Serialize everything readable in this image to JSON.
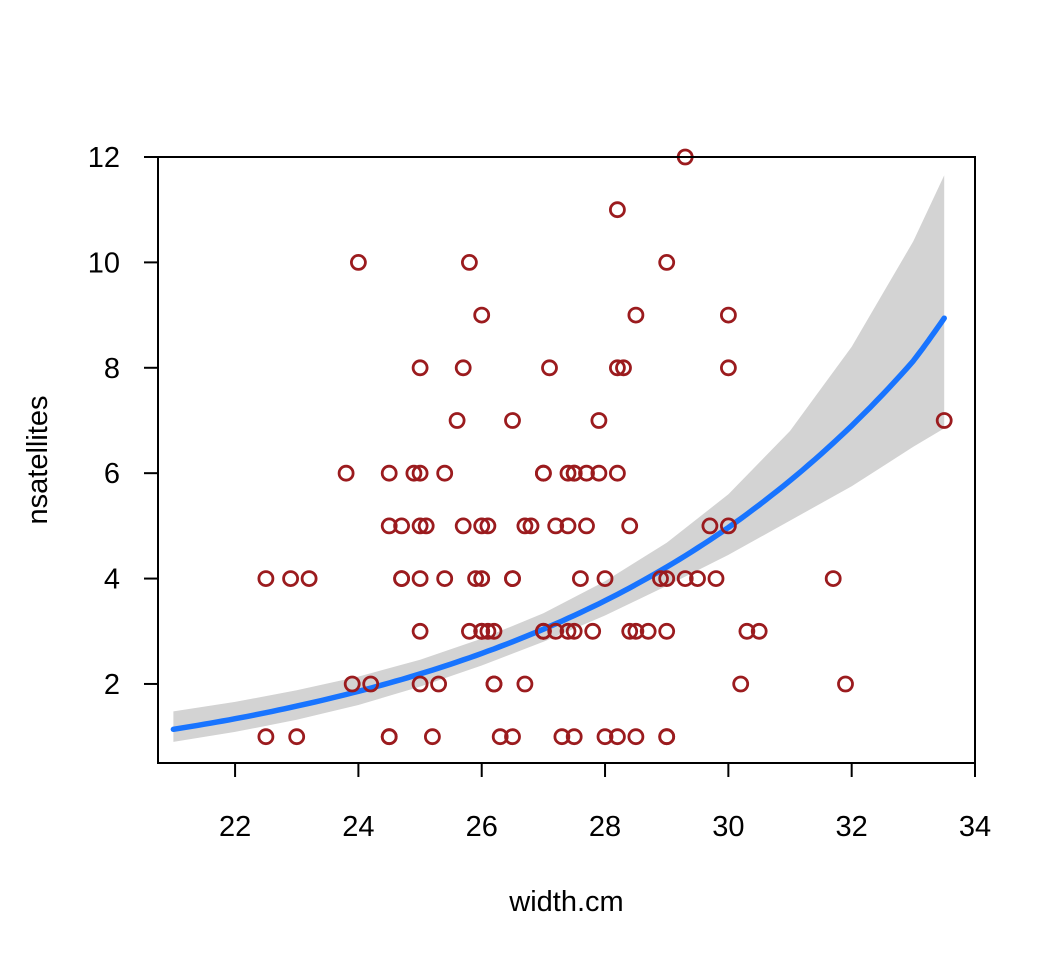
{
  "chart_data": {
    "type": "scatter",
    "title": "",
    "xlabel": "width.cm",
    "ylabel": "nsatellites",
    "xlim": [
      20.75,
      34.0
    ],
    "ylim": [
      0.5,
      12.0
    ],
    "x_ticks": [
      22,
      24,
      26,
      28,
      30,
      32,
      34
    ],
    "y_ticks": [
      2,
      4,
      6,
      8,
      10,
      12
    ],
    "grid": false,
    "colors": {
      "points": "#9b1b1e",
      "fit_line": "#1874ff",
      "band": "#d3d3d3"
    },
    "points": [
      [
        22.5,
        1
      ],
      [
        23.0,
        1
      ],
      [
        24.5,
        1
      ],
      [
        24.5,
        1
      ],
      [
        25.2,
        1
      ],
      [
        26.3,
        1
      ],
      [
        26.5,
        1
      ],
      [
        27.3,
        1
      ],
      [
        27.5,
        1
      ],
      [
        28.0,
        1
      ],
      [
        28.2,
        1
      ],
      [
        28.5,
        1
      ],
      [
        29.0,
        1
      ],
      [
        29.0,
        1
      ],
      [
        23.9,
        2
      ],
      [
        24.2,
        2
      ],
      [
        25.0,
        2
      ],
      [
        25.3,
        2
      ],
      [
        26.2,
        2
      ],
      [
        26.2,
        2
      ],
      [
        26.7,
        2
      ],
      [
        30.2,
        2
      ],
      [
        31.9,
        2
      ],
      [
        25.0,
        3
      ],
      [
        25.8,
        3
      ],
      [
        26.0,
        3
      ],
      [
        26.0,
        3
      ],
      [
        26.1,
        3
      ],
      [
        26.2,
        3
      ],
      [
        27.0,
        3
      ],
      [
        27.0,
        3
      ],
      [
        27.2,
        3
      ],
      [
        27.4,
        3
      ],
      [
        27.5,
        3
      ],
      [
        27.8,
        3
      ],
      [
        28.4,
        3
      ],
      [
        28.5,
        3
      ],
      [
        28.7,
        3
      ],
      [
        29.0,
        3
      ],
      [
        30.3,
        3
      ],
      [
        30.5,
        3
      ],
      [
        22.5,
        4
      ],
      [
        22.9,
        4
      ],
      [
        23.2,
        4
      ],
      [
        24.7,
        4
      ],
      [
        24.7,
        4
      ],
      [
        25.0,
        4
      ],
      [
        25.4,
        4
      ],
      [
        25.9,
        4
      ],
      [
        26.0,
        4
      ],
      [
        26.5,
        4
      ],
      [
        26.5,
        4
      ],
      [
        27.6,
        4
      ],
      [
        28.0,
        4
      ],
      [
        28.9,
        4
      ],
      [
        29.0,
        4
      ],
      [
        29.3,
        4
      ],
      [
        29.5,
        4
      ],
      [
        29.8,
        4
      ],
      [
        31.7,
        4
      ],
      [
        24.5,
        5
      ],
      [
        24.7,
        5
      ],
      [
        25.0,
        5
      ],
      [
        25.1,
        5
      ],
      [
        25.7,
        5
      ],
      [
        26.0,
        5
      ],
      [
        26.1,
        5
      ],
      [
        26.7,
        5
      ],
      [
        26.8,
        5
      ],
      [
        27.2,
        5
      ],
      [
        27.4,
        5
      ],
      [
        27.7,
        5
      ],
      [
        28.4,
        5
      ],
      [
        29.7,
        5
      ],
      [
        30.0,
        5
      ],
      [
        23.8,
        6
      ],
      [
        24.5,
        6
      ],
      [
        24.9,
        6
      ],
      [
        25.0,
        6
      ],
      [
        25.4,
        6
      ],
      [
        27.0,
        6
      ],
      [
        27.0,
        6
      ],
      [
        27.4,
        6
      ],
      [
        27.5,
        6
      ],
      [
        27.5,
        6
      ],
      [
        27.7,
        6
      ],
      [
        27.9,
        6
      ],
      [
        28.2,
        6
      ],
      [
        25.6,
        7
      ],
      [
        26.5,
        7
      ],
      [
        27.9,
        7
      ],
      [
        33.5,
        7
      ],
      [
        25.0,
        8
      ],
      [
        25.7,
        8
      ],
      [
        27.1,
        8
      ],
      [
        28.2,
        8
      ],
      [
        28.3,
        8
      ],
      [
        30.0,
        8
      ],
      [
        26.0,
        9
      ],
      [
        28.5,
        9
      ],
      [
        30.0,
        9
      ],
      [
        24.0,
        10
      ],
      [
        25.8,
        10
      ],
      [
        29.0,
        10
      ],
      [
        28.2,
        11
      ],
      [
        29.3,
        12
      ]
    ],
    "fit": {
      "x": [
        21.0,
        22.0,
        23.0,
        24.0,
        25.0,
        26.0,
        27.0,
        28.0,
        29.0,
        30.0,
        31.0,
        32.0,
        33.0,
        33.5
      ],
      "y": [
        1.14,
        1.34,
        1.58,
        1.86,
        2.19,
        2.58,
        3.04,
        3.58,
        4.22,
        4.97,
        5.86,
        6.9,
        8.13,
        8.94
      ],
      "lower": [
        0.9,
        1.09,
        1.32,
        1.6,
        1.95,
        2.35,
        2.8,
        3.3,
        3.86,
        4.45,
        5.1,
        5.75,
        6.5,
        6.85
      ],
      "upper": [
        1.48,
        1.66,
        1.88,
        2.14,
        2.46,
        2.86,
        3.34,
        3.95,
        4.68,
        5.6,
        6.8,
        8.4,
        10.4,
        11.65
      ]
    }
  }
}
